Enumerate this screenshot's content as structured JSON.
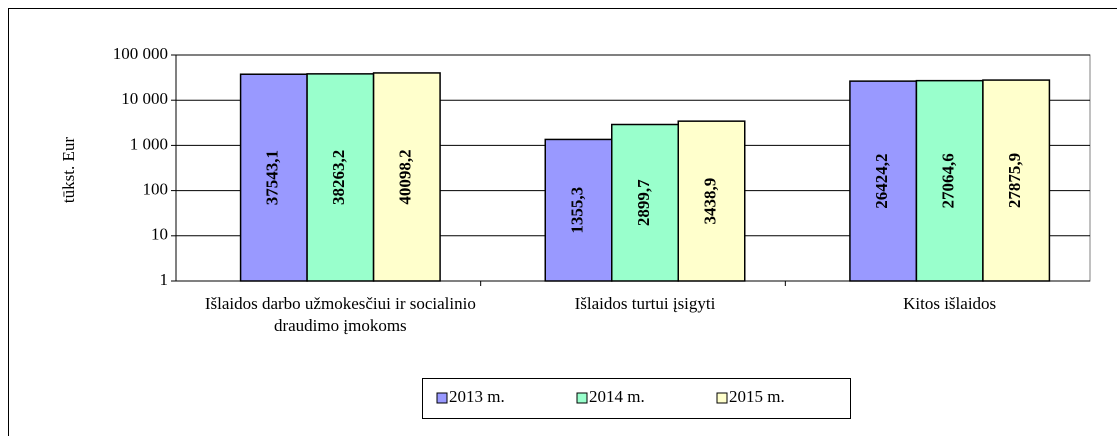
{
  "chart_data": {
    "type": "bar",
    "y_label": "tūkst. Eur",
    "categories": [
      "Išlaidos darbo užmokesčiui ir socialinio draudimo įmokoms",
      "Išlaidos turtui įsigyti",
      "Kitos išlaidos"
    ],
    "series": [
      {
        "name": "2013 m.",
        "color": "#9999ff",
        "values": [
          37543.1,
          1355.3,
          26424.2
        ],
        "value_labels": [
          "37543,1",
          "1355,3",
          "26424,2"
        ]
      },
      {
        "name": "2014 m.",
        "color": "#99ffcc",
        "values": [
          38263.2,
          2899.7,
          27064.6
        ],
        "value_labels": [
          "38263,2",
          "2899,7",
          "27064,6"
        ]
      },
      {
        "name": "2015 m.",
        "color": "#ffffcc",
        "values": [
          40098.2,
          3438.9,
          27875.9
        ],
        "value_labels": [
          "40098,2",
          "3438,9",
          "27875,9"
        ]
      }
    ],
    "ylim": [
      1,
      100000
    ],
    "yticks": [
      1,
      10,
      100,
      {
        "value": 1000,
        "label": "1 000"
      },
      {
        "value": 10000,
        "label": "10 000"
      },
      {
        "value": 100000,
        "label": "100 000"
      }
    ],
    "log_scale": true,
    "grid": true,
    "legend": "bottom"
  }
}
